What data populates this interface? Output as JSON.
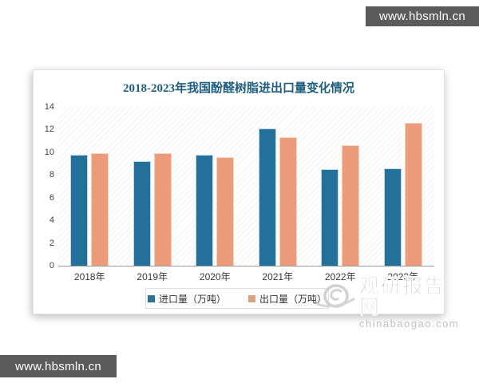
{
  "watermarks": {
    "top": "www.hbsmln.cn",
    "bottom": "www.hbsmln.cn"
  },
  "brand": {
    "name": "观研报告网",
    "domain": "chinabaogao.com"
  },
  "colors": {
    "import_bar": "#23709b",
    "export_bar": "#ec9c7a",
    "title_text": "#1e5e7e",
    "watermark_bar_bg": "#5b5b5b",
    "brand_watermark_text": "#b4b4b4"
  },
  "chart_data": {
    "type": "bar",
    "title": "2018-2023年我国酚醛树脂进出口量变化情况",
    "categories": [
      "2018年",
      "2019年",
      "2020年",
      "2021年",
      "2022年",
      "2023年"
    ],
    "series": [
      {
        "name": "进口量（万吨）",
        "color": "#23709b",
        "values": [
          9.8,
          9.2,
          9.8,
          12.1,
          8.5,
          8.6
        ]
      },
      {
        "name": "出口量（万吨）",
        "color": "#ec9c7a",
        "values": [
          9.9,
          9.9,
          9.6,
          11.3,
          10.6,
          12.6
        ]
      }
    ],
    "xlabel": "",
    "ylabel": "",
    "ylim": [
      0,
      14
    ],
    "yticks": [
      0,
      2,
      4,
      6,
      8,
      10,
      12,
      14
    ],
    "grid": false,
    "legend_position": "bottom-center"
  }
}
